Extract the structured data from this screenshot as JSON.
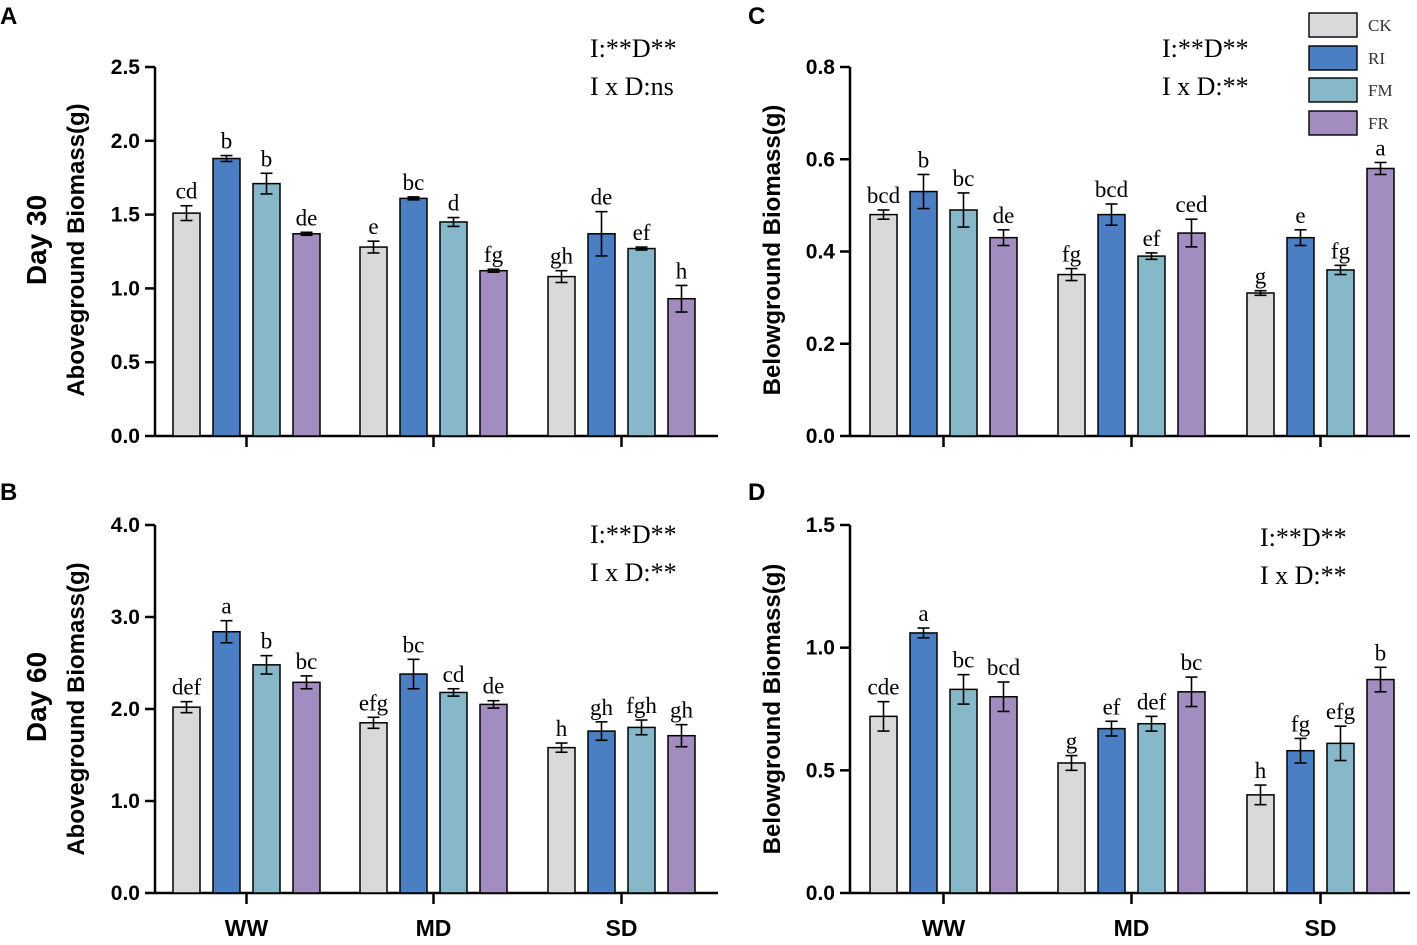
{
  "legend": {
    "entries": [
      {
        "label": "CK",
        "color": "#d9d9d9"
      },
      {
        "label": "RI",
        "color": "#4a7fc3"
      },
      {
        "label": "FM",
        "color": "#86b8c9"
      },
      {
        "label": "FR",
        "color": "#a38cbf"
      }
    ]
  },
  "row_labels": [
    "Day 30",
    "Day 60"
  ],
  "chart_data": [
    {
      "panel": "A",
      "type": "bar",
      "ylabel": "Aboveground Biomass(g)",
      "ylim": [
        0,
        2.5
      ],
      "yticks": [
        "0.0",
        "0.5",
        "1.0",
        "1.5",
        "2.0",
        "2.5"
      ],
      "categories": [
        "WW",
        "MD",
        "SD"
      ],
      "annotations": [
        "I:**D**",
        "I x D:ns"
      ],
      "series": [
        {
          "name": "CK",
          "values": [
            1.51,
            1.28,
            1.08
          ],
          "errors": [
            0.05,
            0.04,
            0.04
          ],
          "letters": [
            "cd",
            "e",
            "gh"
          ]
        },
        {
          "name": "RI",
          "values": [
            1.88,
            1.61,
            1.37
          ],
          "errors": [
            0.02,
            0.01,
            0.15
          ],
          "letters": [
            "b",
            "bc",
            "de"
          ]
        },
        {
          "name": "FM",
          "values": [
            1.71,
            1.45,
            1.27
          ],
          "errors": [
            0.07,
            0.03,
            0.01
          ],
          "letters": [
            "b",
            "d",
            "ef"
          ]
        },
        {
          "name": "FR",
          "values": [
            1.37,
            1.12,
            0.93
          ],
          "errors": [
            0.01,
            0.01,
            0.09
          ],
          "letters": [
            "de",
            "fg",
            "h"
          ]
        }
      ]
    },
    {
      "panel": "B",
      "type": "bar",
      "ylabel": "Aboveground Biomass(g)",
      "ylim": [
        0,
        4.0
      ],
      "yticks": [
        "0.0",
        "1.0",
        "2.0",
        "3.0",
        "4.0"
      ],
      "categories": [
        "WW",
        "MD",
        "SD"
      ],
      "annotations": [
        "I:**D**",
        "I x D:**"
      ],
      "series": [
        {
          "name": "CK",
          "values": [
            2.02,
            1.85,
            1.58
          ],
          "errors": [
            0.06,
            0.06,
            0.05
          ],
          "letters": [
            "def",
            "efg",
            "h"
          ]
        },
        {
          "name": "RI",
          "values": [
            2.84,
            2.38,
            1.76
          ],
          "errors": [
            0.12,
            0.16,
            0.1
          ],
          "letters": [
            "a",
            "bc",
            "gh"
          ]
        },
        {
          "name": "FM",
          "values": [
            2.48,
            2.18,
            1.8
          ],
          "errors": [
            0.1,
            0.04,
            0.08
          ],
          "letters": [
            "b",
            "cd",
            "fgh"
          ]
        },
        {
          "name": "FR",
          "values": [
            2.29,
            2.05,
            1.71
          ],
          "errors": [
            0.07,
            0.04,
            0.12
          ],
          "letters": [
            "bc",
            "de",
            "gh"
          ]
        }
      ]
    },
    {
      "panel": "C",
      "type": "bar",
      "ylabel": "Belowground Biomass(g)",
      "ylim": [
        0,
        0.8
      ],
      "yticks": [
        "0.0",
        "0.2",
        "0.4",
        "0.6",
        "0.8"
      ],
      "categories": [
        "WW",
        "MD",
        "SD"
      ],
      "annotations": [
        "I:**D**",
        "I x D:**"
      ],
      "series": [
        {
          "name": "CK",
          "values": [
            0.48,
            0.35,
            0.31
          ],
          "errors": [
            0.01,
            0.013,
            0.005
          ],
          "letters": [
            "bcd",
            "fg",
            "g"
          ]
        },
        {
          "name": "RI",
          "values": [
            0.53,
            0.48,
            0.43
          ],
          "errors": [
            0.037,
            0.023,
            0.017
          ],
          "letters": [
            "b",
            "bcd",
            "e"
          ]
        },
        {
          "name": "FM",
          "values": [
            0.49,
            0.39,
            0.36
          ],
          "errors": [
            0.037,
            0.007,
            0.01
          ],
          "letters": [
            "bc",
            "ef",
            "fg"
          ]
        },
        {
          "name": "FR",
          "values": [
            0.43,
            0.44,
            0.58
          ],
          "errors": [
            0.017,
            0.03,
            0.013
          ],
          "letters": [
            "de",
            "ced",
            "a"
          ]
        }
      ]
    },
    {
      "panel": "D",
      "type": "bar",
      "ylabel": "Belowground Biomass(g)",
      "ylim": [
        0,
        1.5
      ],
      "yticks": [
        "0.0",
        "0.5",
        "1.0",
        "1.5"
      ],
      "categories": [
        "WW",
        "MD",
        "SD"
      ],
      "annotations": [
        "I:**D**",
        "I x D:**"
      ],
      "series": [
        {
          "name": "CK",
          "values": [
            0.72,
            0.53,
            0.4
          ],
          "errors": [
            0.06,
            0.03,
            0.04
          ],
          "letters": [
            "cde",
            "g",
            "h"
          ]
        },
        {
          "name": "RI",
          "values": [
            1.06,
            0.67,
            0.58
          ],
          "errors": [
            0.02,
            0.03,
            0.05
          ],
          "letters": [
            "a",
            "ef",
            "fg"
          ]
        },
        {
          "name": "FM",
          "values": [
            0.83,
            0.69,
            0.61
          ],
          "errors": [
            0.06,
            0.03,
            0.07
          ],
          "letters": [
            "bc",
            "def",
            "efg"
          ]
        },
        {
          "name": "FR",
          "values": [
            0.8,
            0.82,
            0.87
          ],
          "errors": [
            0.06,
            0.06,
            0.05
          ],
          "letters": [
            "bcd",
            "bc",
            "b"
          ]
        }
      ]
    }
  ]
}
